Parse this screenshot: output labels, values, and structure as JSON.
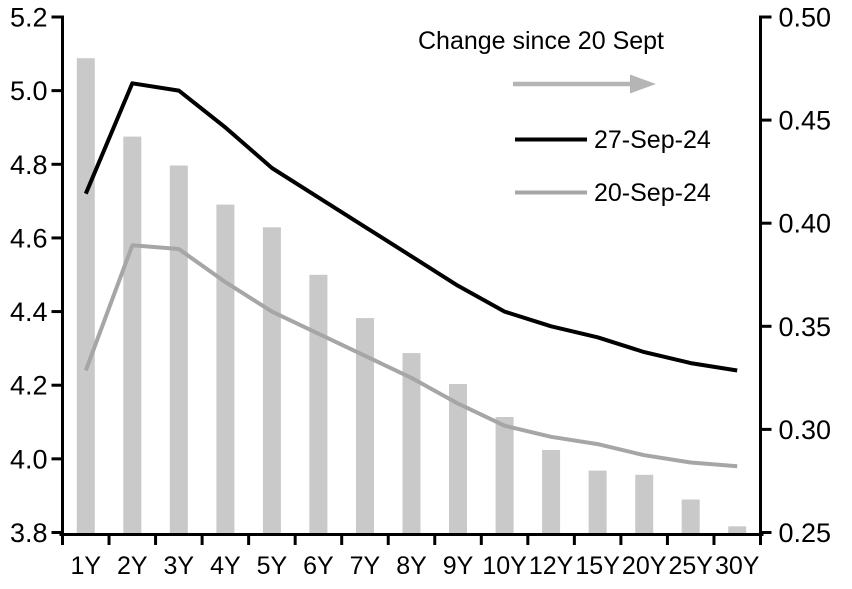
{
  "chart_data": {
    "type": "combo",
    "annotation": "Change since 20 Sept",
    "categories": [
      "1Y",
      "2Y",
      "3Y",
      "4Y",
      "5Y",
      "6Y",
      "7Y",
      "8Y",
      "9Y",
      "10Y",
      "12Y",
      "15Y",
      "20Y",
      "25Y",
      "30Y"
    ],
    "left_axis": {
      "min": 3.8,
      "max": 5.2,
      "tick_step": 0.2,
      "tick_labels": [
        "5.2",
        "5.0",
        "4.8",
        "4.6",
        "4.4",
        "4.2",
        "4.0",
        "3.8"
      ]
    },
    "right_axis": {
      "min": 0.25,
      "max": 0.5,
      "tick_step": 0.05,
      "tick_labels": [
        "0.50",
        "0.45",
        "0.40",
        "0.35",
        "0.30",
        "0.25"
      ]
    },
    "series": [
      {
        "name": "27-Sep-24",
        "type": "line",
        "axis": "left",
        "color": "#000000",
        "values": [
          4.72,
          5.02,
          5.0,
          4.9,
          4.79,
          4.71,
          4.63,
          4.55,
          4.47,
          4.4,
          4.36,
          4.33,
          4.29,
          4.26,
          4.24
        ]
      },
      {
        "name": "20-Sep-24",
        "type": "line",
        "axis": "left",
        "color": "#a6a6a6",
        "values": [
          4.24,
          4.58,
          4.57,
          4.48,
          4.4,
          4.34,
          4.28,
          4.22,
          4.15,
          4.09,
          4.06,
          4.04,
          4.01,
          3.99,
          3.98
        ]
      },
      {
        "name": "Change since 20 Sept",
        "type": "bar",
        "axis": "right",
        "color": "#c9c9c9",
        "values": [
          0.48,
          0.442,
          0.428,
          0.409,
          0.398,
          0.375,
          0.354,
          0.337,
          0.322,
          0.306,
          0.29,
          0.28,
          0.278,
          0.266,
          0.253
        ]
      }
    ],
    "legend": {
      "position": "top-right-inside",
      "arrow_color": "#b5b5b5",
      "entries": [
        "27-Sep-24",
        "20-Sep-24"
      ]
    },
    "grid": false,
    "axis_color": "#000000",
    "background": "#ffffff"
  }
}
